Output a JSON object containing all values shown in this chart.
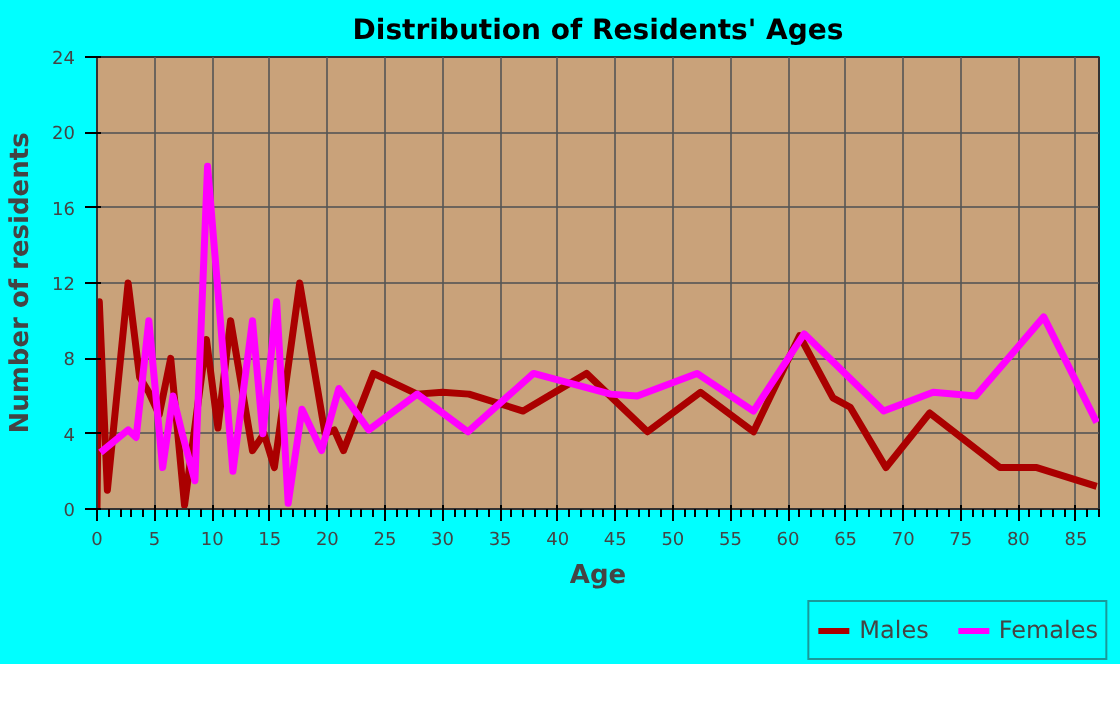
{
  "chart_data": {
    "type": "line",
    "title": "Distribution of Residents' Ages",
    "xlabel": "Age",
    "ylabel": "Number of residents",
    "xlim": [
      0,
      87
    ],
    "xticks": [
      0,
      5,
      10,
      15,
      20,
      25,
      30,
      35,
      40,
      45,
      50,
      55,
      60,
      65,
      70,
      75,
      80,
      85
    ],
    "ylim": [
      0,
      24
    ],
    "yticks": [
      0,
      4,
      8,
      12,
      16,
      20,
      24
    ],
    "grid": true,
    "legend": "bottom right",
    "marker": "none",
    "line_style": "solid",
    "series": [
      {
        "name": "Males",
        "color": "#aa0000",
        "x": [
          0,
          0.2,
          0.9,
          2.7,
          3.7,
          4.5,
          5.4,
          6.4,
          7.6,
          9.5,
          10.5,
          11.6,
          13.5,
          14.5,
          15.4,
          17.6,
          19.8,
          20.6,
          21.4,
          24,
          27.8,
          30,
          32.3,
          37,
          42.5,
          47.8,
          52.4,
          57,
          61,
          63.9,
          65.4,
          68.5,
          72.3,
          78.4,
          81.6,
          86.8
        ],
        "values": [
          0,
          11,
          1,
          12,
          7,
          6.2,
          5,
          8,
          0.2,
          9,
          4.3,
          10,
          3.1,
          4,
          2.2,
          12,
          4,
          4.2,
          3.1,
          7.2,
          6.1,
          6.2,
          6.1,
          5.2,
          7.2,
          4.1,
          6.2,
          4.1,
          9.2,
          5.9,
          5.4,
          2.2,
          5.1,
          2.2,
          2.2,
          1.2
        ]
      },
      {
        "name": "Females",
        "color": "#ff00ff",
        "x": [
          0.3,
          2.7,
          3.4,
          4.5,
          5.7,
          6.6,
          7.4,
          8.5,
          9.6,
          11.8,
          13.5,
          14.4,
          15.6,
          16.6,
          17.8,
          19.5,
          21,
          23.6,
          27.8,
          32.2,
          37.9,
          44.6,
          46.9,
          52.1,
          57,
          61.4,
          68.3,
          72.6,
          76.3,
          82.2,
          86.8
        ],
        "values": [
          3,
          4.2,
          3.8,
          10,
          2.2,
          6,
          4,
          1.5,
          18.2,
          2,
          10,
          4,
          11,
          0.3,
          5.3,
          3.1,
          6.4,
          4.2,
          6.1,
          4.1,
          7.2,
          6.1,
          6,
          7.2,
          5.2,
          9.3,
          5.2,
          6.2,
          6,
          10.2,
          4.6
        ]
      }
    ]
  }
}
